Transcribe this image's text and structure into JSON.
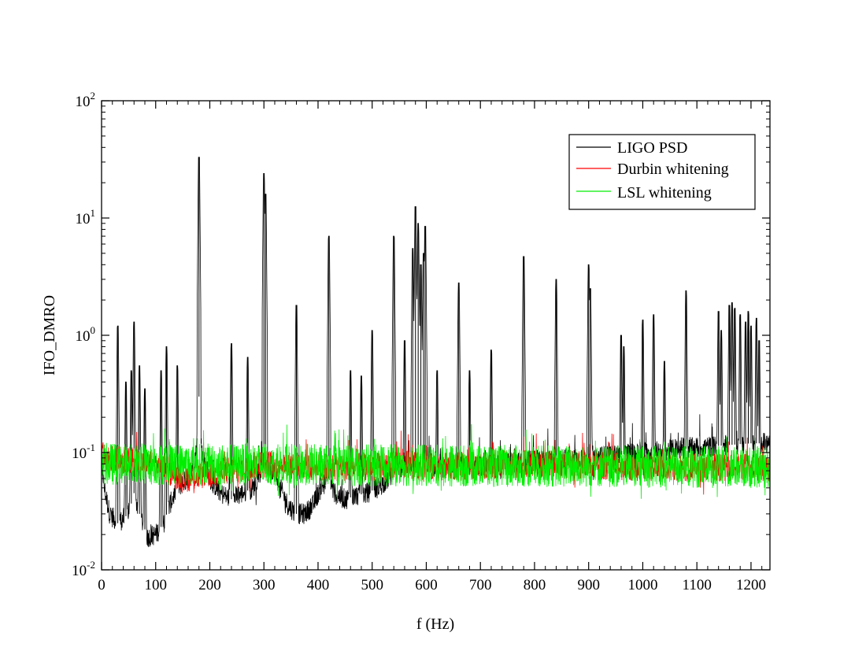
{
  "chart_data": {
    "type": "line",
    "title": "",
    "xlabel": "f (Hz)",
    "ylabel": "IFO_DMRO",
    "xlim": [
      0,
      1235
    ],
    "ylim": [
      0.01,
      100
    ],
    "yscale": "log",
    "grid": false,
    "legend_position": "top-right",
    "x_ticks": [
      0,
      100,
      200,
      300,
      400,
      500,
      600,
      700,
      800,
      900,
      1000,
      1100,
      1200
    ],
    "x_tick_labels": [
      "0",
      "100",
      "200",
      "300",
      "400",
      "500",
      "600",
      "700",
      "800",
      "900",
      "1000",
      "1100",
      "1200"
    ],
    "y_ticks": [
      {
        "value": 0.01,
        "base": "10",
        "exp": "-2"
      },
      {
        "value": 0.1,
        "base": "10",
        "exp": "-1"
      },
      {
        "value": 1,
        "base": "10",
        "exp": "0"
      },
      {
        "value": 10,
        "base": "10",
        "exp": "1"
      },
      {
        "value": 100,
        "base": "10",
        "exp": "2"
      }
    ],
    "series": [
      {
        "name": "LIGO PSD",
        "color": "#000000",
        "baseline": [
          [
            0,
            0.09
          ],
          [
            5,
            0.05
          ],
          [
            15,
            0.03
          ],
          [
            30,
            0.025
          ],
          [
            50,
            0.03
          ],
          [
            60,
            0.045
          ],
          [
            70,
            0.03
          ],
          [
            85,
            0.019
          ],
          [
            100,
            0.02
          ],
          [
            115,
            0.025
          ],
          [
            125,
            0.035
          ],
          [
            140,
            0.05
          ],
          [
            160,
            0.06
          ],
          [
            175,
            0.1
          ],
          [
            180,
            0.3
          ],
          [
            185,
            0.1
          ],
          [
            200,
            0.06
          ],
          [
            220,
            0.045
          ],
          [
            240,
            0.04
          ],
          [
            260,
            0.045
          ],
          [
            280,
            0.05
          ],
          [
            300,
            0.08
          ],
          [
            320,
            0.07
          ],
          [
            330,
            0.05
          ],
          [
            345,
            0.035
          ],
          [
            360,
            0.03
          ],
          [
            375,
            0.03
          ],
          [
            390,
            0.035
          ],
          [
            405,
            0.05
          ],
          [
            420,
            0.06
          ],
          [
            430,
            0.045
          ],
          [
            450,
            0.04
          ],
          [
            470,
            0.043
          ],
          [
            490,
            0.045
          ],
          [
            510,
            0.05
          ],
          [
            530,
            0.06
          ],
          [
            540,
            0.07
          ],
          [
            560,
            0.075
          ],
          [
            600,
            0.075
          ],
          [
            650,
            0.075
          ],
          [
            700,
            0.077
          ],
          [
            750,
            0.08
          ],
          [
            800,
            0.085
          ],
          [
            850,
            0.088
          ],
          [
            900,
            0.09
          ],
          [
            950,
            0.095
          ],
          [
            1000,
            0.1
          ],
          [
            1050,
            0.105
          ],
          [
            1100,
            0.11
          ],
          [
            1150,
            0.115
          ],
          [
            1200,
            0.12
          ],
          [
            1235,
            0.12
          ]
        ],
        "peaks": [
          [
            30,
            1.2
          ],
          [
            45,
            0.4
          ],
          [
            55,
            0.5
          ],
          [
            60,
            1.3
          ],
          [
            70,
            0.55
          ],
          [
            80,
            0.35
          ],
          [
            110,
            0.5
          ],
          [
            120,
            0.8
          ],
          [
            140,
            0.55
          ],
          [
            180,
            33
          ],
          [
            240,
            0.85
          ],
          [
            270,
            0.65
          ],
          [
            300,
            24
          ],
          [
            303,
            16
          ],
          [
            360,
            1.8
          ],
          [
            420,
            7
          ],
          [
            460,
            0.5
          ],
          [
            480,
            0.45
          ],
          [
            500,
            1.1
          ],
          [
            540,
            7
          ],
          [
            560,
            0.9
          ],
          [
            575,
            5.5
          ],
          [
            580,
            12.5
          ],
          [
            585,
            9
          ],
          [
            590,
            4
          ],
          [
            595,
            5
          ],
          [
            598,
            8.5
          ],
          [
            620,
            0.5
          ],
          [
            660,
            2.8
          ],
          [
            680,
            0.5
          ],
          [
            720,
            0.75
          ],
          [
            780,
            4.7
          ],
          [
            840,
            3
          ],
          [
            900,
            4
          ],
          [
            903,
            2.5
          ],
          [
            960,
            1.0
          ],
          [
            965,
            0.8
          ],
          [
            1000,
            1.35
          ],
          [
            1020,
            1.5
          ],
          [
            1040,
            0.6
          ],
          [
            1080,
            2.4
          ],
          [
            1140,
            1.6
          ],
          [
            1145,
            1.1
          ],
          [
            1160,
            1.8
          ],
          [
            1165,
            1.9
          ],
          [
            1170,
            1.7
          ],
          [
            1180,
            1.5
          ],
          [
            1190,
            1.3
          ],
          [
            1195,
            1.6
          ],
          [
            1200,
            1.2
          ],
          [
            1210,
            1.4
          ],
          [
            1215,
            0.9
          ]
        ]
      },
      {
        "name": "Durbin whitening",
        "color": "#ff0000",
        "baseline": [
          [
            0,
            0.09
          ],
          [
            100,
            0.08
          ],
          [
            150,
            0.06
          ],
          [
            200,
            0.065
          ],
          [
            300,
            0.08
          ],
          [
            400,
            0.075
          ],
          [
            500,
            0.075
          ],
          [
            560,
            0.08
          ],
          [
            600,
            0.075
          ],
          [
            700,
            0.078
          ],
          [
            800,
            0.08
          ],
          [
            900,
            0.078
          ],
          [
            1000,
            0.075
          ],
          [
            1100,
            0.075
          ],
          [
            1235,
            0.075
          ]
        ],
        "peaks": []
      },
      {
        "name": "LSL whitening",
        "color": "#00ee00",
        "baseline": [
          [
            0,
            0.08
          ],
          [
            1235,
            0.075
          ]
        ],
        "peaks": []
      }
    ]
  }
}
